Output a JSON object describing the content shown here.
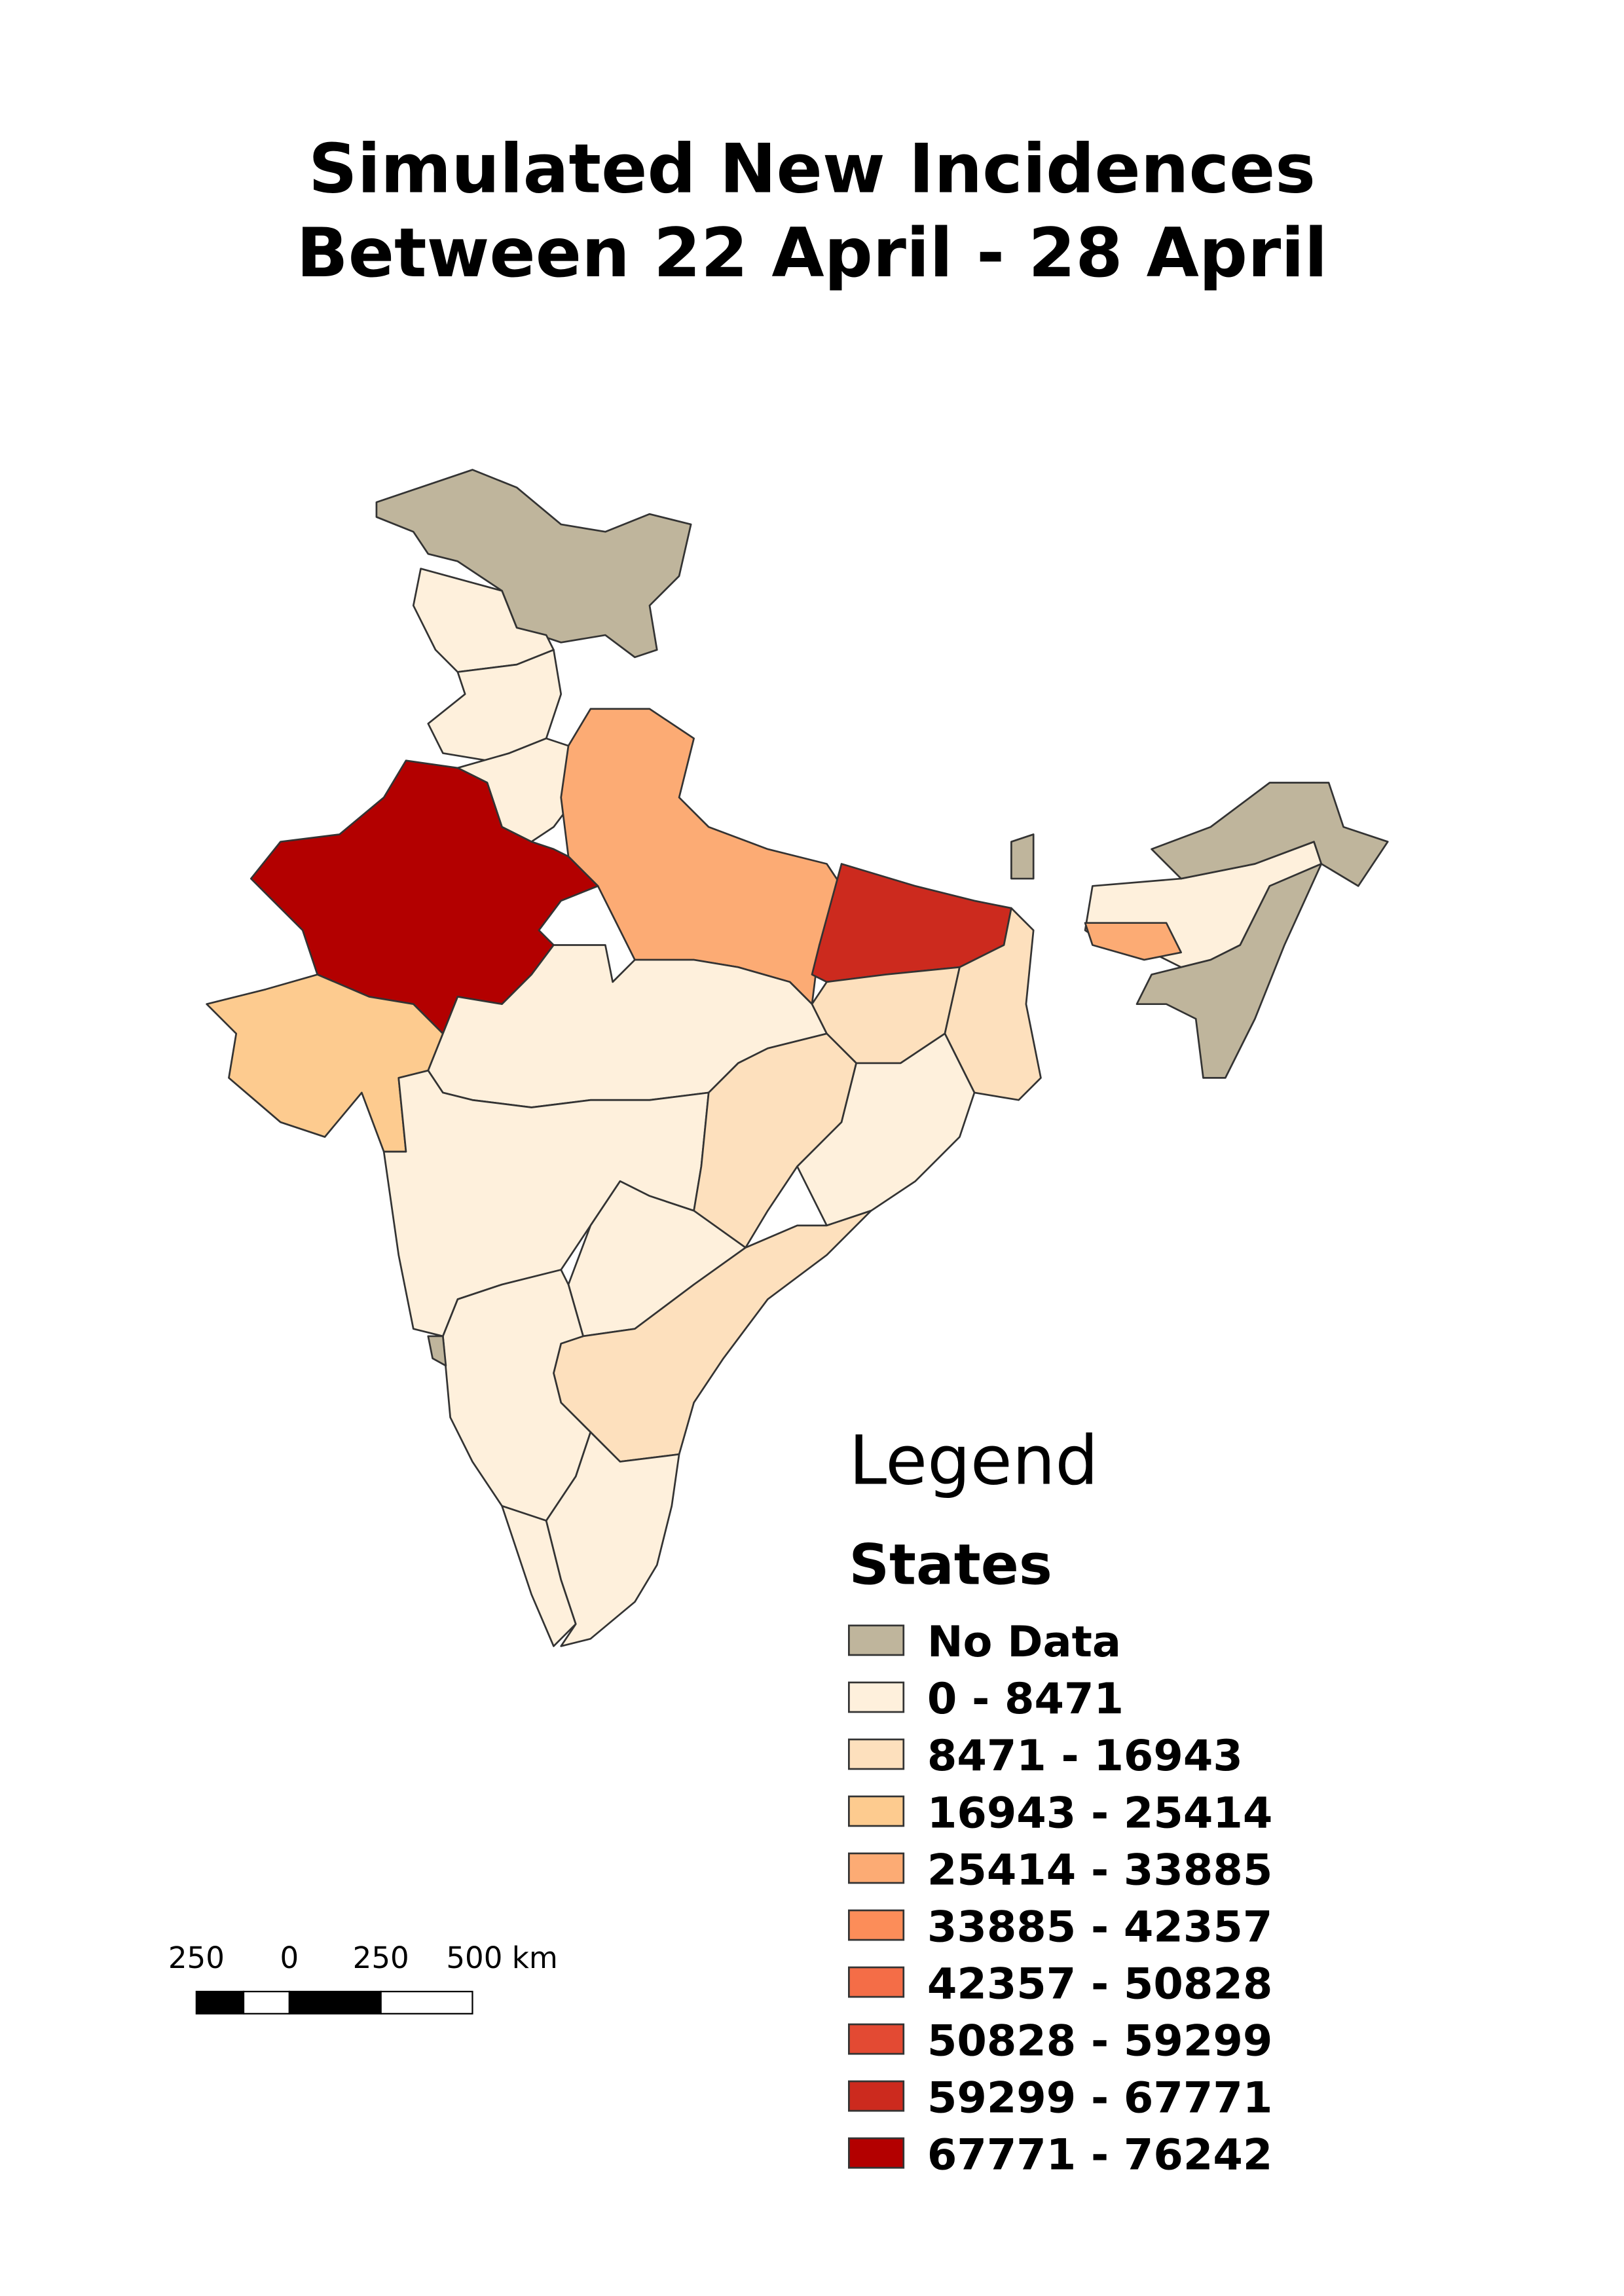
{
  "title_lines": [
    "Simulated New Incidences",
    "Between 22 April - 28 April"
  ],
  "legend": {
    "title": "Legend",
    "layer": "States",
    "items": [
      {
        "label": "No Data",
        "color": "#bfb59c"
      },
      {
        "label": "0 - 8471",
        "color": "#fef0dc"
      },
      {
        "label": "8471 - 16943",
        "color": "#fde0bd"
      },
      {
        "label": "16943 - 25414",
        "color": "#fdcb8f"
      },
      {
        "label": "25414 - 33885",
        "color": "#fcab74"
      },
      {
        "label": "33885 - 42357",
        "color": "#fc8d59"
      },
      {
        "label": "42357 - 50828",
        "color": "#f46d47"
      },
      {
        "label": "50828 - 59299",
        "color": "#e34a33"
      },
      {
        "label": "59299 - 67771",
        "color": "#cc2a1e"
      },
      {
        "label": "67771 - 76242",
        "color": "#b30000"
      }
    ]
  },
  "scale_bar": {
    "labels": [
      "250",
      "0",
      "250",
      "500 km"
    ]
  }
}
